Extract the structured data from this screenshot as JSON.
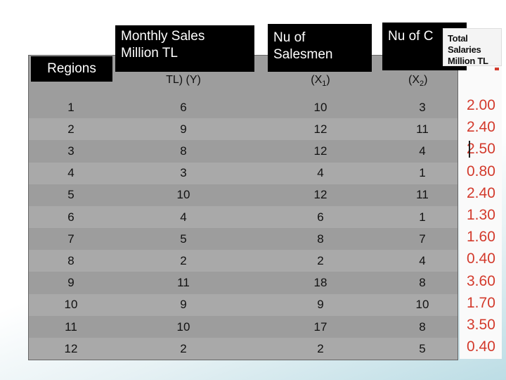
{
  "headers": {
    "regions": "Regions",
    "sales_line1": "Monthly Sales",
    "sales_line2": "Million TL",
    "sales_sub": "TL) (Y)",
    "salesmen_line1": "Nu of",
    "salesmen_line2": "Salesmen",
    "salesmen_sub_prefix": "(X",
    "salesmen_sub_index": "1",
    "salesmen_sub_suffix": ")",
    "other_title": "Nu of C",
    "other_sub_prefix": "(X",
    "other_sub_index": "2",
    "other_sub_suffix": ")",
    "salaries_line1": "Total Salaries",
    "salaries_line2": "Million TL"
  },
  "rows": [
    {
      "region": "1",
      "sales": "6",
      "salesmen": "10",
      "x2": "3",
      "salary": "2.00"
    },
    {
      "region": "2",
      "sales": "9",
      "salesmen": "12",
      "x2": "11",
      "salary": "2.40"
    },
    {
      "region": "3",
      "sales": "8",
      "salesmen": "12",
      "x2": "4",
      "salary": "2.50"
    },
    {
      "region": "4",
      "sales": "3",
      "salesmen": "4",
      "x2": "1",
      "salary": "0.80"
    },
    {
      "region": "5",
      "sales": "10",
      "salesmen": "12",
      "x2": "11",
      "salary": "2.40"
    },
    {
      "region": "6",
      "sales": "4",
      "salesmen": "6",
      "x2": "1",
      "salary": "1.30"
    },
    {
      "region": "7",
      "sales": "5",
      "salesmen": "8",
      "x2": "7",
      "salary": "1.60"
    },
    {
      "region": "8",
      "sales": "2",
      "salesmen": "2",
      "x2": "4",
      "salary": "0.40"
    },
    {
      "region": "9",
      "sales": "11",
      "salesmen": "18",
      "x2": "8",
      "salary": "3.60"
    },
    {
      "region": "10",
      "sales": "9",
      "salesmen": "9",
      "x2": "10",
      "salary": "1.70"
    },
    {
      "region": "11",
      "sales": "10",
      "salesmen": "17",
      "x2": "8",
      "salary": "3.50"
    },
    {
      "region": "12",
      "sales": "2",
      "salesmen": "2",
      "x2": "5",
      "salary": "0.40"
    }
  ],
  "colors": {
    "table_bg": "#9d9d9d",
    "header_bg": "#000000",
    "salary_text": "#d33a2c"
  }
}
